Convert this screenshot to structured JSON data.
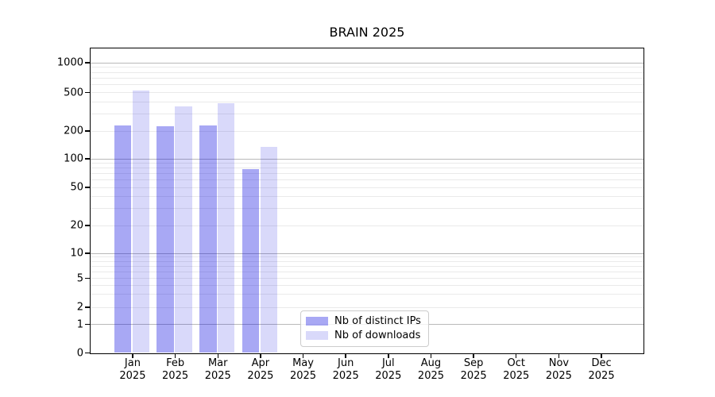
{
  "chart_data": {
    "type": "bar",
    "title": "BRAIN 2025",
    "categories": [
      "Jan",
      "Feb",
      "Mar",
      "Apr",
      "May",
      "Jun",
      "Jul",
      "Aug",
      "Sep",
      "Oct",
      "Nov",
      "Dec"
    ],
    "category_year": "2025",
    "series": [
      {
        "name": "Nb of distinct IPs",
        "color": "rgba(0,0,224,0.34)",
        "values": [
          230,
          225,
          230,
          78,
          0,
          0,
          0,
          0,
          0,
          0,
          0,
          0
        ]
      },
      {
        "name": "Nb of downloads",
        "color": "rgba(0,0,224,0.15)",
        "values": [
          520,
          360,
          390,
          135,
          0,
          0,
          0,
          0,
          0,
          0,
          0,
          0
        ]
      }
    ],
    "xlabel": "",
    "ylabel": "",
    "yscale": "symlog",
    "yticks": [
      0,
      1,
      2,
      5,
      10,
      20,
      50,
      100,
      200,
      500,
      1000
    ],
    "ylim": [
      0,
      1450
    ],
    "grid": "horizontal major and minor log gridlines, drawn through translucent bars",
    "legend_position": "inside lower-center of plot",
    "colors": {
      "axis": "#000000",
      "major_grid": "#b9b9b9",
      "minor_grid": "#eaeaea",
      "legend_border": "#cccccc",
      "background": "#ffffff"
    }
  }
}
